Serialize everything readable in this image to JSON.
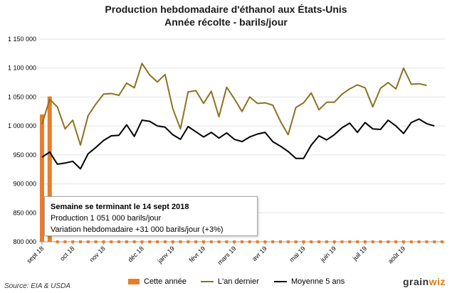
{
  "title_line1": "Production hebdomadaire d'éthanol aux États-Unis",
  "title_line2": "Année récolte - barils/jour",
  "source": "Source: EIA & USDA",
  "logo": {
    "text_main": "grain",
    "text_accent": "wiz"
  },
  "tooltip": {
    "title": "Semaine se terminant le 14 sept 2018",
    "line1": "Production 1 051 000 barils/jour",
    "line2": "Variation hebdomadaire +31 000 barils/jour (+3%)"
  },
  "legend": [
    {
      "label": "Cette année",
      "color": "#e87e2a",
      "kind": "bar"
    },
    {
      "label": "L'an dernier",
      "color": "#8a7321",
      "kind": "line"
    },
    {
      "label": "Moyenne 5 ans",
      "color": "#000000",
      "kind": "line"
    }
  ],
  "chart_data": {
    "type": "bar",
    "title": "Production hebdomadaire d'éthanol aux États-Unis",
    "subtitle": "Année récolte - barils/jour",
    "ylim": [
      800000,
      1150000
    ],
    "yticks": [
      800000,
      850000,
      900000,
      950000,
      1000000,
      1050000,
      1100000,
      1150000
    ],
    "ytick_labels": [
      "800 000",
      "850 000",
      "900 000",
      "950 000",
      "1 000 000",
      "1 050 000",
      "1 100 000",
      "1 150 000"
    ],
    "n_weeks": 53,
    "xtick_labels": [
      {
        "week": 0,
        "label": "sept 18"
      },
      {
        "week": 4,
        "label": "oct 18"
      },
      {
        "week": 8,
        "label": "nov 18"
      },
      {
        "week": 13,
        "label": "déc 18"
      },
      {
        "week": 17,
        "label": "janv 19"
      },
      {
        "week": 21,
        "label": "févr 19"
      },
      {
        "week": 25,
        "label": "mars 19"
      },
      {
        "week": 29,
        "label": "avr 19"
      },
      {
        "week": 34,
        "label": "mai 19"
      },
      {
        "week": 38,
        "label": "juin 19"
      },
      {
        "week": 42,
        "label": "juil 19"
      },
      {
        "week": 47,
        "label": "août 19"
      }
    ],
    "grid": true,
    "legend_position": "bottom",
    "series": [
      {
        "name": "Cette année",
        "type": "bar",
        "color": "#e87e2a",
        "values": [
          1020000,
          1051000,
          800000,
          800000,
          800000,
          800000,
          800000,
          800000,
          800000,
          800000,
          800000,
          800000,
          800000,
          800000,
          800000,
          800000,
          800000,
          800000,
          800000,
          800000,
          800000,
          800000,
          800000,
          800000,
          800000,
          800000,
          800000,
          800000,
          800000,
          800000,
          800000,
          800000,
          800000,
          800000,
          800000,
          800000,
          800000,
          800000,
          800000,
          800000,
          800000,
          800000,
          800000,
          800000,
          800000,
          800000,
          800000,
          800000,
          800000,
          800000,
          800000,
          800000,
          800000
        ]
      },
      {
        "name": "L'an dernier",
        "type": "line",
        "color": "#8a7321",
        "values": [
          1003000,
          1046000,
          1033000,
          995000,
          1010000,
          967000,
          1018000,
          1038000,
          1055000,
          1056000,
          1053000,
          1074000,
          1066000,
          1108000,
          1088000,
          1076000,
          1089000,
          1030000,
          995000,
          1059000,
          1061000,
          1039000,
          1060000,
          1016000,
          1067000,
          1047000,
          1025000,
          1050000,
          1039000,
          1040000,
          1036000,
          1008000,
          985000,
          1032000,
          1040000,
          1057000,
          1028000,
          1041000,
          1041000,
          1055000,
          1064000,
          1071000,
          1066000,
          1033000,
          1065000,
          1075000,
          1064000,
          1100000,
          1072000,
          1073000,
          1070000
        ]
      },
      {
        "name": "Moyenne 5 ans",
        "type": "line",
        "color": "#000000",
        "values": [
          946000,
          955000,
          934000,
          936000,
          939000,
          926000,
          952000,
          963000,
          975000,
          983000,
          984000,
          1002000,
          982000,
          1010000,
          1008000,
          1000000,
          998000,
          985000,
          977000,
          999000,
          990000,
          981000,
          989000,
          979000,
          988000,
          977000,
          973000,
          981000,
          986000,
          989000,
          973000,
          965000,
          956000,
          944000,
          944000,
          967000,
          983000,
          976000,
          985000,
          997000,
          1005000,
          989000,
          1006000,
          995000,
          994000,
          1010000,
          1000000,
          987000,
          1006000,
          1012000,
          1004000,
          1000000
        ]
      }
    ]
  }
}
